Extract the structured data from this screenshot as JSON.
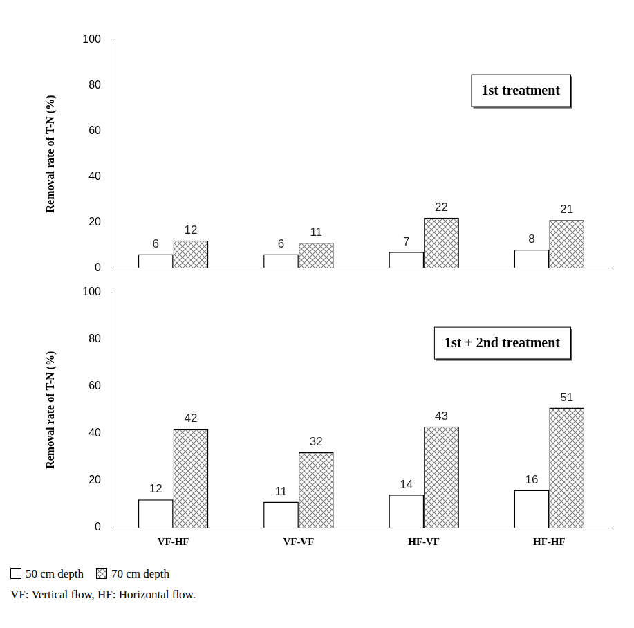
{
  "chart_data": [
    {
      "type": "bar",
      "annotation": "1st treatment",
      "y_label": "Removal rate of T-N (%)",
      "categories": [
        "VF-HF",
        "VF-VF",
        "HF-VF",
        "HF-HF"
      ],
      "series": [
        {
          "name": "50 cm depth",
          "color": "#ffffff",
          "values": [
            6,
            6,
            7,
            8
          ]
        },
        {
          "name": "70 cm depth",
          "color": "#808080",
          "values": [
            12,
            11,
            22,
            21
          ]
        }
      ],
      "ylim": [
        0,
        100
      ],
      "yticks": [
        0,
        20,
        40,
        60,
        80,
        100
      ],
      "grid": false,
      "data_labels": true,
      "tick_labels": "y"
    },
    {
      "type": "bar",
      "annotation": "1st + 2nd treatment",
      "y_label": "Removal rate of T-N (%)",
      "categories": [
        "VF-HF",
        "VF-VF",
        "HF-VF",
        "HF-HF"
      ],
      "series": [
        {
          "name": "50 cm depth",
          "color": "#ffffff",
          "values": [
            12,
            11,
            14,
            16
          ]
        },
        {
          "name": "70 cm depth",
          "color": "#808080",
          "values": [
            42,
            32,
            43,
            51
          ]
        }
      ],
      "ylim": [
        0,
        100
      ],
      "yticks": [
        0,
        20,
        40,
        60,
        80,
        100
      ],
      "grid": false,
      "data_labels": true,
      "tick_labels": true
    }
  ],
  "notes": [
    "VF: Vertical flow, HF: Horizontal flow."
  ]
}
